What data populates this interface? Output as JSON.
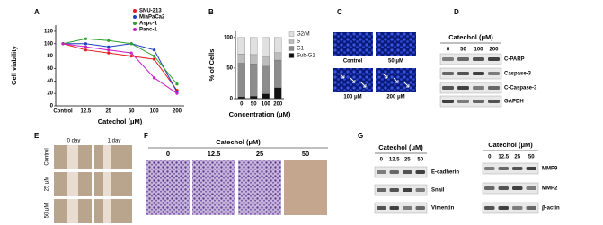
{
  "chart_data": [
    {
      "type": "line",
      "panel": "A",
      "y_label": "Cell viability",
      "x_label": "Catechol (μM)",
      "categories": [
        "Control",
        "12.5",
        "25",
        "50",
        "100",
        "200"
      ],
      "series": [
        {
          "name": "SNU-213",
          "color": "#e41a1c",
          "values": [
            100,
            90,
            85,
            80,
            75,
            25
          ]
        },
        {
          "name": "MiaPaCa2",
          "color": "#1f3fbf",
          "values": [
            100,
            100,
            95,
            100,
            90,
            22
          ]
        },
        {
          "name": "Aspc-1",
          "color": "#2ca02c",
          "values": [
            100,
            108,
            105,
            100,
            80,
            35
          ]
        },
        {
          "name": "Panc-1",
          "color": "#c81ec8",
          "values": [
            100,
            95,
            90,
            85,
            45,
            20
          ]
        }
      ],
      "ylim": [
        0,
        130
      ],
      "yticks": [
        0,
        20,
        40,
        60,
        80,
        100,
        120
      ]
    },
    {
      "type": "bar",
      "stacked": true,
      "panel": "B",
      "y_label": "% of Cells",
      "x_label": "Concentration (μM)",
      "categories": [
        "0",
        "50",
        "100",
        "200"
      ],
      "series": [
        {
          "name": "Sub-G1",
          "color": "#111111",
          "values": [
            3,
            4,
            8,
            18
          ]
        },
        {
          "name": "G1",
          "color": "#8c8c8c",
          "values": [
            55,
            53,
            45,
            45
          ]
        },
        {
          "name": "S",
          "color": "#bdbdbd",
          "values": [
            15,
            15,
            15,
            12
          ]
        },
        {
          "name": "G2/M",
          "color": "#e0e0e0",
          "values": [
            27,
            28,
            32,
            25
          ]
        }
      ],
      "ylim": [
        0,
        110
      ],
      "yticks": [
        0,
        50,
        100
      ]
    }
  ],
  "panel_c": {
    "label": "C",
    "images": [
      "Control",
      "50 μM",
      "100 μM",
      "200 μM"
    ]
  },
  "panel_d": {
    "label": "D",
    "header": "Catechol (μM)",
    "lanes": [
      "0",
      "50",
      "100",
      "200"
    ],
    "rows": [
      "C-PARP",
      "Caspase-3",
      "C-Caspase-3",
      "GAPDH"
    ]
  },
  "panel_e": {
    "label": "E",
    "columns": [
      "0 day",
      "1 day"
    ],
    "rows": [
      "Control",
      "25 μM",
      "50 μM"
    ]
  },
  "panel_f": {
    "label": "F",
    "header": "Catechol (μM)",
    "lanes": [
      "0",
      "12.5",
      "25",
      "50"
    ]
  },
  "panel_g": {
    "label": "G",
    "blots": [
      {
        "header": "Catechol (μM)",
        "lanes": [
          "0",
          "12.5",
          "25",
          "50"
        ],
        "rows": [
          "E-cadherin",
          "Snail",
          "Vimentin"
        ]
      },
      {
        "header": "Catechol (μM)",
        "lanes": [
          "0",
          "12.5",
          "25",
          "50"
        ],
        "rows": [
          "MMP9",
          "MMP2",
          "β-actin"
        ]
      }
    ]
  }
}
